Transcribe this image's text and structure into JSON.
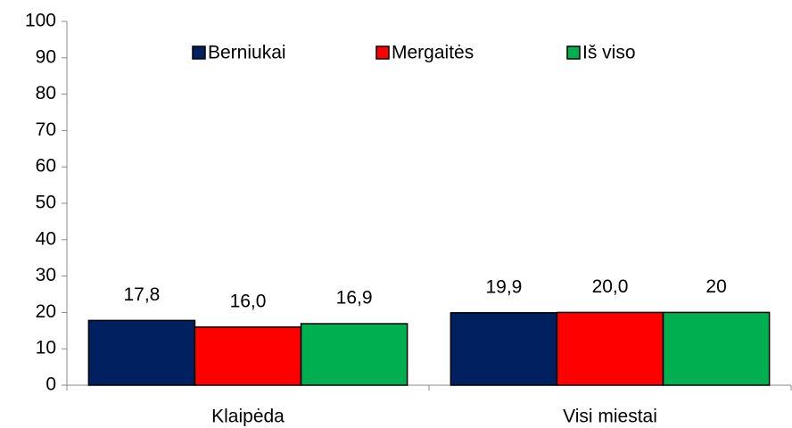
{
  "chart_data": {
    "type": "bar",
    "categories": [
      "Klaipėda",
      "Visi miestai"
    ],
    "series": [
      {
        "name": "Berniukai",
        "color": "#002060",
        "values": [
          17.8,
          19.9
        ],
        "value_labels": [
          "17,8",
          "19,9"
        ]
      },
      {
        "name": "Mergaitės",
        "color": "#ff0000",
        "values": [
          16.0,
          20.0
        ],
        "value_labels": [
          "16,0",
          "20,0"
        ]
      },
      {
        "name": "Iš viso",
        "color": "#00b050",
        "values": [
          16.9,
          20
        ],
        "value_labels": [
          "16,9",
          "20"
        ]
      }
    ],
    "ylim": [
      0,
      100
    ],
    "yticks": [
      0,
      10,
      20,
      30,
      40,
      50,
      60,
      70,
      80,
      90,
      100
    ],
    "legend": "top"
  }
}
